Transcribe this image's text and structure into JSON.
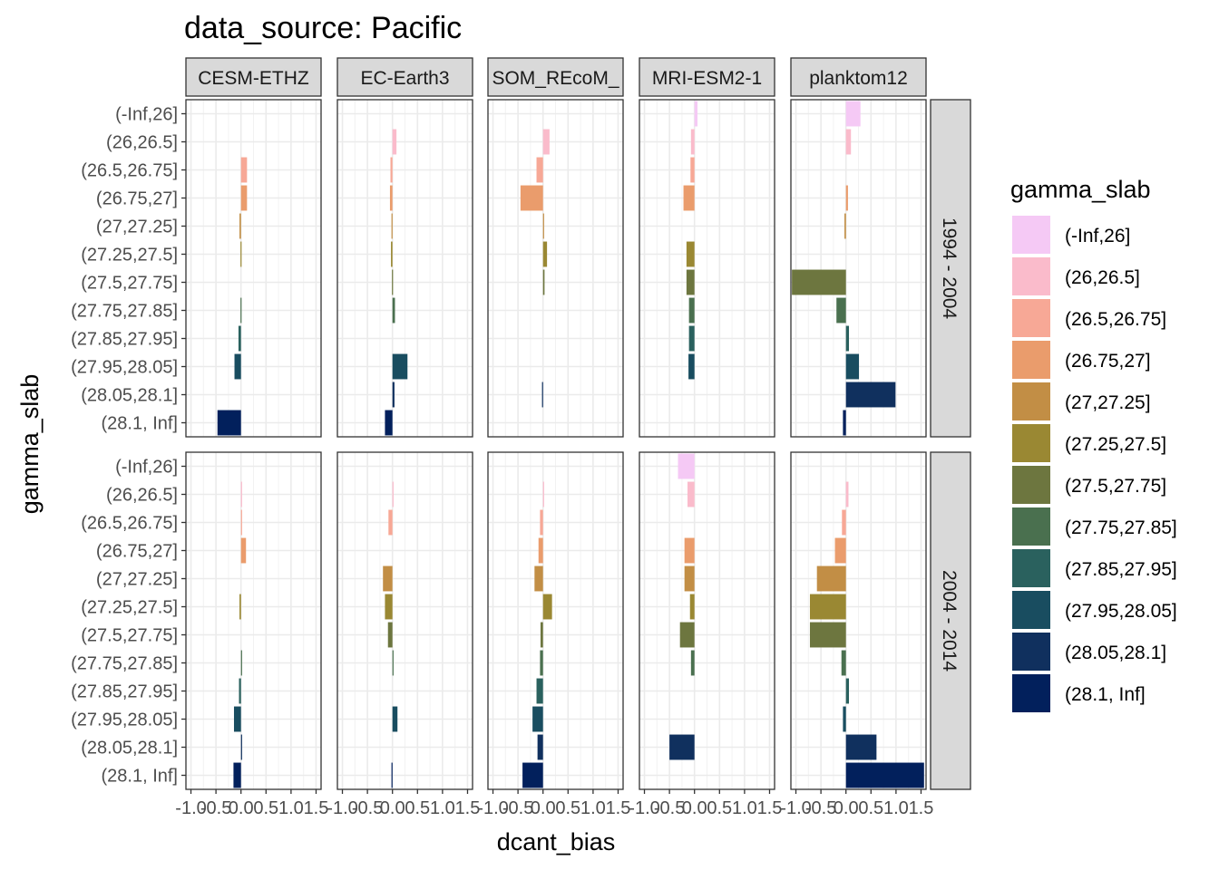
{
  "chart_data": {
    "type": "bar",
    "orientation": "horizontal",
    "title": "data_source: Pacific",
    "xlabel": "dcant_bias",
    "ylabel": "gamma_slab",
    "xlim": [
      -1.1,
      1.6
    ],
    "x_ticks": [
      "-1.0",
      "-0.5",
      "0.0",
      "0.5",
      "1.0",
      "1.5"
    ],
    "x_tick_values": [
      -1.0,
      -0.5,
      0.0,
      0.5,
      1.0,
      1.5
    ],
    "grid": true,
    "legend_position": "right",
    "legend_title": "gamma_slab",
    "columns": [
      "CESM-ETHZ",
      "EC-Earth3",
      "SOM_REcoM_",
      "MRI-ESM2-1",
      "planktom12"
    ],
    "rows": [
      "1994 - 2004",
      "2004 - 2014"
    ],
    "categories": [
      "(-Inf,26]",
      "(26,26.5]",
      "(26.5,26.75]",
      "(26.75,27]",
      "(27,27.25]",
      "(27.25,27.5]",
      "(27.5,27.75]",
      "(27.75,27.85]",
      "(27.85,27.95]",
      "(27.95,28.05]",
      "(28.05,28.1]",
      "(28.1, Inf]"
    ],
    "colors": [
      "#F5C9F5",
      "#FABBCB",
      "#F7A896",
      "#EA9C6C",
      "#C28E45",
      "#9A8833",
      "#6D763F",
      "#4A704F",
      "#2A615E",
      "#194D60",
      "#10305E",
      "#02205C"
    ],
    "panels": [
      {
        "column": "CESM-ETHZ",
        "row": "1994 - 2004",
        "values": [
          null,
          null,
          0.12,
          0.12,
          -0.03,
          -0.01,
          null,
          -0.01,
          -0.05,
          -0.13,
          null,
          -0.47
        ]
      },
      {
        "column": "EC-Earth3",
        "row": "1994 - 2004",
        "values": [
          null,
          0.08,
          -0.04,
          -0.05,
          -0.02,
          -0.03,
          -0.01,
          0.05,
          null,
          0.3,
          0.04,
          -0.15
        ]
      },
      {
        "column": "SOM_REcoM_",
        "row": "1994 - 2004",
        "values": [
          null,
          0.13,
          -0.13,
          -0.45,
          0.01,
          0.08,
          0.03,
          null,
          null,
          null,
          -0.02,
          null
        ]
      },
      {
        "column": "MRI-ESM2-1",
        "row": "1994 - 2004",
        "values": [
          0.06,
          -0.07,
          -0.08,
          -0.22,
          null,
          -0.16,
          -0.16,
          -0.11,
          -0.11,
          -0.12,
          null,
          null
        ]
      },
      {
        "column": "planktom12",
        "row": "1994 - 2004",
        "values": [
          0.29,
          0.1,
          null,
          0.04,
          -0.03,
          null,
          -1.08,
          -0.19,
          0.06,
          0.26,
          0.99,
          -0.06
        ]
      },
      {
        "column": "CESM-ETHZ",
        "row": "2004 - 2014",
        "values": [
          null,
          0.02,
          0.02,
          0.1,
          null,
          -0.03,
          null,
          0.01,
          -0.04,
          -0.14,
          0.02,
          -0.15
        ]
      },
      {
        "column": "EC-Earth3",
        "row": "2004 - 2014",
        "values": [
          null,
          0.02,
          -0.08,
          null,
          -0.19,
          -0.15,
          -0.09,
          0.02,
          null,
          0.1,
          null,
          -0.02
        ]
      },
      {
        "column": "SOM_REcoM_",
        "row": "2004 - 2014",
        "values": [
          null,
          0.01,
          -0.06,
          -0.09,
          -0.17,
          0.18,
          -0.05,
          -0.06,
          -0.13,
          -0.21,
          -0.11,
          -0.41
        ]
      },
      {
        "column": "MRI-ESM2-1",
        "row": "2004 - 2014",
        "values": [
          -0.33,
          -0.14,
          null,
          -0.2,
          -0.2,
          -0.09,
          -0.29,
          -0.07,
          null,
          null,
          -0.5,
          null
        ]
      },
      {
        "column": "planktom12",
        "row": "2004 - 2014",
        "values": [
          null,
          0.05,
          -0.08,
          -0.22,
          -0.58,
          -0.72,
          -0.72,
          -0.09,
          0.06,
          -0.06,
          0.61,
          1.56
        ]
      }
    ]
  }
}
